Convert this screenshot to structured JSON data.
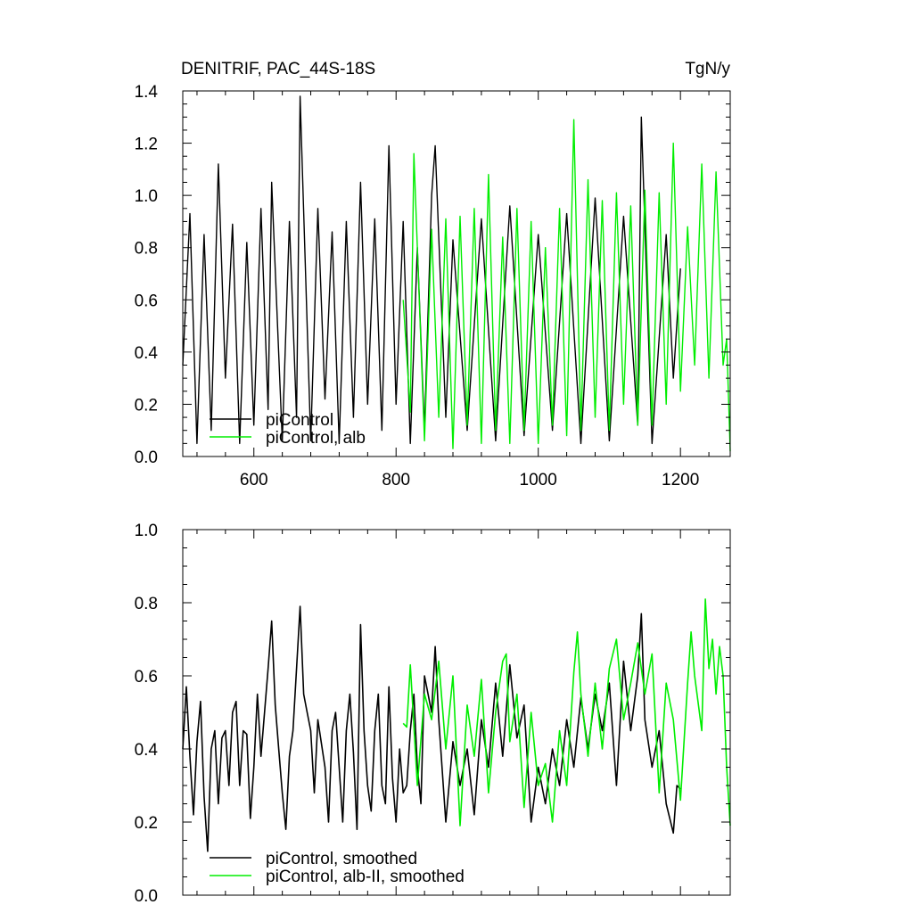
{
  "chart_data": [
    {
      "type": "line",
      "title": "DENITRIF, PAC_44S-18S",
      "units": "TgN/y",
      "xlim": [
        500,
        1270
      ],
      "ylim": [
        0.0,
        1.4
      ],
      "xticks": [
        600,
        800,
        1000,
        1200
      ],
      "xtick_labels": [
        "600",
        "800",
        "1000",
        "1200"
      ],
      "yticks": [
        0.0,
        0.2,
        0.4,
        0.6,
        0.8,
        1.0,
        1.2,
        1.4
      ],
      "ytick_labels": [
        "0.0",
        "0.2",
        "0.4",
        "0.6",
        "0.8",
        "1.0",
        "1.2",
        "1.4"
      ],
      "legend_position": "bottom-left",
      "series": [
        {
          "name": "piControl",
          "color": "#000000",
          "x_range": [
            500,
            1200
          ],
          "points": [
            [
              500,
              0.35
            ],
            [
              510,
              0.93
            ],
            [
              520,
              0.05
            ],
            [
              530,
              0.85
            ],
            [
              540,
              0.1
            ],
            [
              550,
              1.12
            ],
            [
              560,
              0.3
            ],
            [
              570,
              0.89
            ],
            [
              580,
              0.05
            ],
            [
              590,
              0.82
            ],
            [
              600,
              0.12
            ],
            [
              610,
              0.95
            ],
            [
              620,
              0.18
            ],
            [
              625,
              1.05
            ],
            [
              640,
              0.06
            ],
            [
              650,
              0.9
            ],
            [
              660,
              0.15
            ],
            [
              665,
              1.38
            ],
            [
              680,
              0.06
            ],
            [
              690,
              0.95
            ],
            [
              700,
              0.22
            ],
            [
              710,
              0.86
            ],
            [
              720,
              0.05
            ],
            [
              730,
              0.9
            ],
            [
              740,
              0.15
            ],
            [
              750,
              1.05
            ],
            [
              760,
              0.2
            ],
            [
              770,
              0.91
            ],
            [
              780,
              0.1
            ],
            [
              790,
              1.19
            ],
            [
              800,
              0.2
            ],
            [
              810,
              0.9
            ],
            [
              820,
              0.05
            ],
            [
              830,
              0.8
            ],
            [
              840,
              0.1
            ],
            [
              850,
              1.0
            ],
            [
              855,
              1.19
            ],
            [
              870,
              0.15
            ],
            [
              880,
              0.83
            ],
            [
              900,
              0.1
            ],
            [
              920,
              0.91
            ],
            [
              940,
              0.06
            ],
            [
              960,
              0.96
            ],
            [
              980,
              0.08
            ],
            [
              1000,
              0.85
            ],
            [
              1020,
              0.1
            ],
            [
              1040,
              0.93
            ],
            [
              1060,
              0.05
            ],
            [
              1080,
              0.99
            ],
            [
              1100,
              0.06
            ],
            [
              1120,
              0.92
            ],
            [
              1140,
              0.12
            ],
            [
              1145,
              1.3
            ],
            [
              1160,
              0.05
            ],
            [
              1180,
              0.85
            ],
            [
              1190,
              0.3
            ],
            [
              1200,
              0.72
            ]
          ]
        },
        {
          "name": "piControl, alb",
          "color": "#00ee00",
          "x_range": [
            810,
            1270
          ],
          "points": [
            [
              810,
              0.6
            ],
            [
              820,
              0.17
            ],
            [
              825,
              1.16
            ],
            [
              840,
              0.06
            ],
            [
              850,
              0.87
            ],
            [
              860,
              0.15
            ],
            [
              870,
              0.91
            ],
            [
              880,
              0.03
            ],
            [
              890,
              0.92
            ],
            [
              900,
              0.12
            ],
            [
              910,
              0.95
            ],
            [
              920,
              0.05
            ],
            [
              930,
              1.08
            ],
            [
              940,
              0.1
            ],
            [
              950,
              0.84
            ],
            [
              960,
              0.05
            ],
            [
              970,
              0.95
            ],
            [
              980,
              0.1
            ],
            [
              990,
              0.9
            ],
            [
              1000,
              0.05
            ],
            [
              1010,
              0.8
            ],
            [
              1020,
              0.12
            ],
            [
              1030,
              0.95
            ],
            [
              1040,
              0.08
            ],
            [
              1050,
              1.29
            ],
            [
              1060,
              0.1
            ],
            [
              1070,
              1.06
            ],
            [
              1080,
              0.15
            ],
            [
              1090,
              0.98
            ],
            [
              1100,
              0.1
            ],
            [
              1110,
              1.01
            ],
            [
              1120,
              0.2
            ],
            [
              1130,
              0.96
            ],
            [
              1140,
              0.12
            ],
            [
              1150,
              1.02
            ],
            [
              1160,
              0.12
            ],
            [
              1170,
              1.01
            ],
            [
              1180,
              0.2
            ],
            [
              1190,
              1.2
            ],
            [
              1200,
              0.25
            ],
            [
              1210,
              0.88
            ],
            [
              1220,
              0.35
            ],
            [
              1230,
              1.12
            ],
            [
              1240,
              0.3
            ],
            [
              1250,
              1.09
            ],
            [
              1260,
              0.35
            ],
            [
              1265,
              0.45
            ],
            [
              1270,
              0.02
            ]
          ]
        }
      ]
    },
    {
      "type": "line",
      "xlim": [
        500,
        1270
      ],
      "ylim": [
        0.0,
        1.0
      ],
      "xticks": [
        600,
        800,
        1000,
        1200
      ],
      "yticks": [
        0.0,
        0.2,
        0.4,
        0.6,
        0.8,
        1.0
      ],
      "ytick_labels": [
        "0.0",
        "0.2",
        "0.4",
        "0.6",
        "0.8",
        "1.0"
      ],
      "legend_position": "bottom-left",
      "series": [
        {
          "name": "piControl, smoothed",
          "color": "#000000",
          "points": [
            [
              500,
              0.4
            ],
            [
              505,
              0.57
            ],
            [
              510,
              0.38
            ],
            [
              515,
              0.22
            ],
            [
              520,
              0.42
            ],
            [
              525,
              0.53
            ],
            [
              530,
              0.27
            ],
            [
              535,
              0.12
            ],
            [
              540,
              0.4
            ],
            [
              545,
              0.45
            ],
            [
              550,
              0.25
            ],
            [
              555,
              0.43
            ],
            [
              560,
              0.45
            ],
            [
              565,
              0.3
            ],
            [
              570,
              0.5
            ],
            [
              575,
              0.53
            ],
            [
              580,
              0.3
            ],
            [
              585,
              0.45
            ],
            [
              590,
              0.44
            ],
            [
              595,
              0.21
            ],
            [
              600,
              0.35
            ],
            [
              605,
              0.55
            ],
            [
              610,
              0.38
            ],
            [
              620,
              0.62
            ],
            [
              625,
              0.75
            ],
            [
              630,
              0.52
            ],
            [
              635,
              0.4
            ],
            [
              640,
              0.28
            ],
            [
              645,
              0.18
            ],
            [
              650,
              0.38
            ],
            [
              655,
              0.45
            ],
            [
              660,
              0.62
            ],
            [
              665,
              0.79
            ],
            [
              670,
              0.55
            ],
            [
              675,
              0.5
            ],
            [
              680,
              0.45
            ],
            [
              685,
              0.28
            ],
            [
              690,
              0.48
            ],
            [
              700,
              0.35
            ],
            [
              705,
              0.2
            ],
            [
              710,
              0.45
            ],
            [
              715,
              0.5
            ],
            [
              720,
              0.35
            ],
            [
              725,
              0.2
            ],
            [
              730,
              0.45
            ],
            [
              735,
              0.55
            ],
            [
              740,
              0.39
            ],
            [
              745,
              0.18
            ],
            [
              750,
              0.74
            ],
            [
              755,
              0.45
            ],
            [
              760,
              0.3
            ],
            [
              765,
              0.23
            ],
            [
              770,
              0.45
            ],
            [
              775,
              0.55
            ],
            [
              780,
              0.3
            ],
            [
              785,
              0.25
            ],
            [
              790,
              0.57
            ],
            [
              795,
              0.32
            ],
            [
              800,
              0.2
            ],
            [
              805,
              0.4
            ],
            [
              810,
              0.28
            ],
            [
              815,
              0.3
            ],
            [
              820,
              0.45
            ],
            [
              825,
              0.55
            ],
            [
              830,
              0.35
            ],
            [
              835,
              0.25
            ],
            [
              840,
              0.6
            ],
            [
              850,
              0.5
            ],
            [
              855,
              0.68
            ],
            [
              860,
              0.48
            ],
            [
              870,
              0.2
            ],
            [
              880,
              0.42
            ],
            [
              890,
              0.3
            ],
            [
              900,
              0.4
            ],
            [
              910,
              0.22
            ],
            [
              920,
              0.48
            ],
            [
              930,
              0.35
            ],
            [
              940,
              0.58
            ],
            [
              950,
              0.38
            ],
            [
              960,
              0.63
            ],
            [
              970,
              0.43
            ],
            [
              980,
              0.52
            ],
            [
              990,
              0.2
            ],
            [
              1000,
              0.35
            ],
            [
              1010,
              0.25
            ],
            [
              1020,
              0.4
            ],
            [
              1030,
              0.3
            ],
            [
              1040,
              0.48
            ],
            [
              1050,
              0.35
            ],
            [
              1060,
              0.54
            ],
            [
              1070,
              0.4
            ],
            [
              1080,
              0.55
            ],
            [
              1090,
              0.45
            ],
            [
              1100,
              0.58
            ],
            [
              1110,
              0.3
            ],
            [
              1120,
              0.64
            ],
            [
              1130,
              0.45
            ],
            [
              1140,
              0.6
            ],
            [
              1145,
              0.77
            ],
            [
              1150,
              0.48
            ],
            [
              1160,
              0.35
            ],
            [
              1170,
              0.45
            ],
            [
              1180,
              0.25
            ],
            [
              1190,
              0.17
            ],
            [
              1195,
              0.3
            ],
            [
              1200,
              0.29
            ]
          ]
        },
        {
          "name": "piControl, alb-II, smoothed",
          "color": "#00ee00",
          "points": [
            [
              810,
              0.47
            ],
            [
              815,
              0.46
            ],
            [
              820,
              0.63
            ],
            [
              830,
              0.3
            ],
            [
              840,
              0.55
            ],
            [
              850,
              0.48
            ],
            [
              860,
              0.64
            ],
            [
              870,
              0.4
            ],
            [
              880,
              0.6
            ],
            [
              890,
              0.19
            ],
            [
              900,
              0.52
            ],
            [
              910,
              0.38
            ],
            [
              920,
              0.59
            ],
            [
              930,
              0.28
            ],
            [
              940,
              0.5
            ],
            [
              950,
              0.64
            ],
            [
              955,
              0.66
            ],
            [
              960,
              0.42
            ],
            [
              970,
              0.55
            ],
            [
              980,
              0.24
            ],
            [
              990,
              0.5
            ],
            [
              1000,
              0.3
            ],
            [
              1010,
              0.36
            ],
            [
              1020,
              0.2
            ],
            [
              1030,
              0.45
            ],
            [
              1040,
              0.3
            ],
            [
              1050,
              0.61
            ],
            [
              1055,
              0.72
            ],
            [
              1060,
              0.55
            ],
            [
              1070,
              0.38
            ],
            [
              1080,
              0.58
            ],
            [
              1090,
              0.4
            ],
            [
              1100,
              0.62
            ],
            [
              1110,
              0.7
            ],
            [
              1120,
              0.48
            ],
            [
              1130,
              0.58
            ],
            [
              1140,
              0.69
            ],
            [
              1150,
              0.55
            ],
            [
              1160,
              0.66
            ],
            [
              1170,
              0.28
            ],
            [
              1180,
              0.58
            ],
            [
              1190,
              0.48
            ],
            [
              1200,
              0.26
            ],
            [
              1210,
              0.58
            ],
            [
              1215,
              0.72
            ],
            [
              1220,
              0.6
            ],
            [
              1230,
              0.45
            ],
            [
              1235,
              0.81
            ],
            [
              1240,
              0.62
            ],
            [
              1245,
              0.7
            ],
            [
              1250,
              0.55
            ],
            [
              1255,
              0.68
            ],
            [
              1260,
              0.6
            ],
            [
              1265,
              0.35
            ],
            [
              1270,
              0.19
            ]
          ]
        }
      ]
    }
  ]
}
